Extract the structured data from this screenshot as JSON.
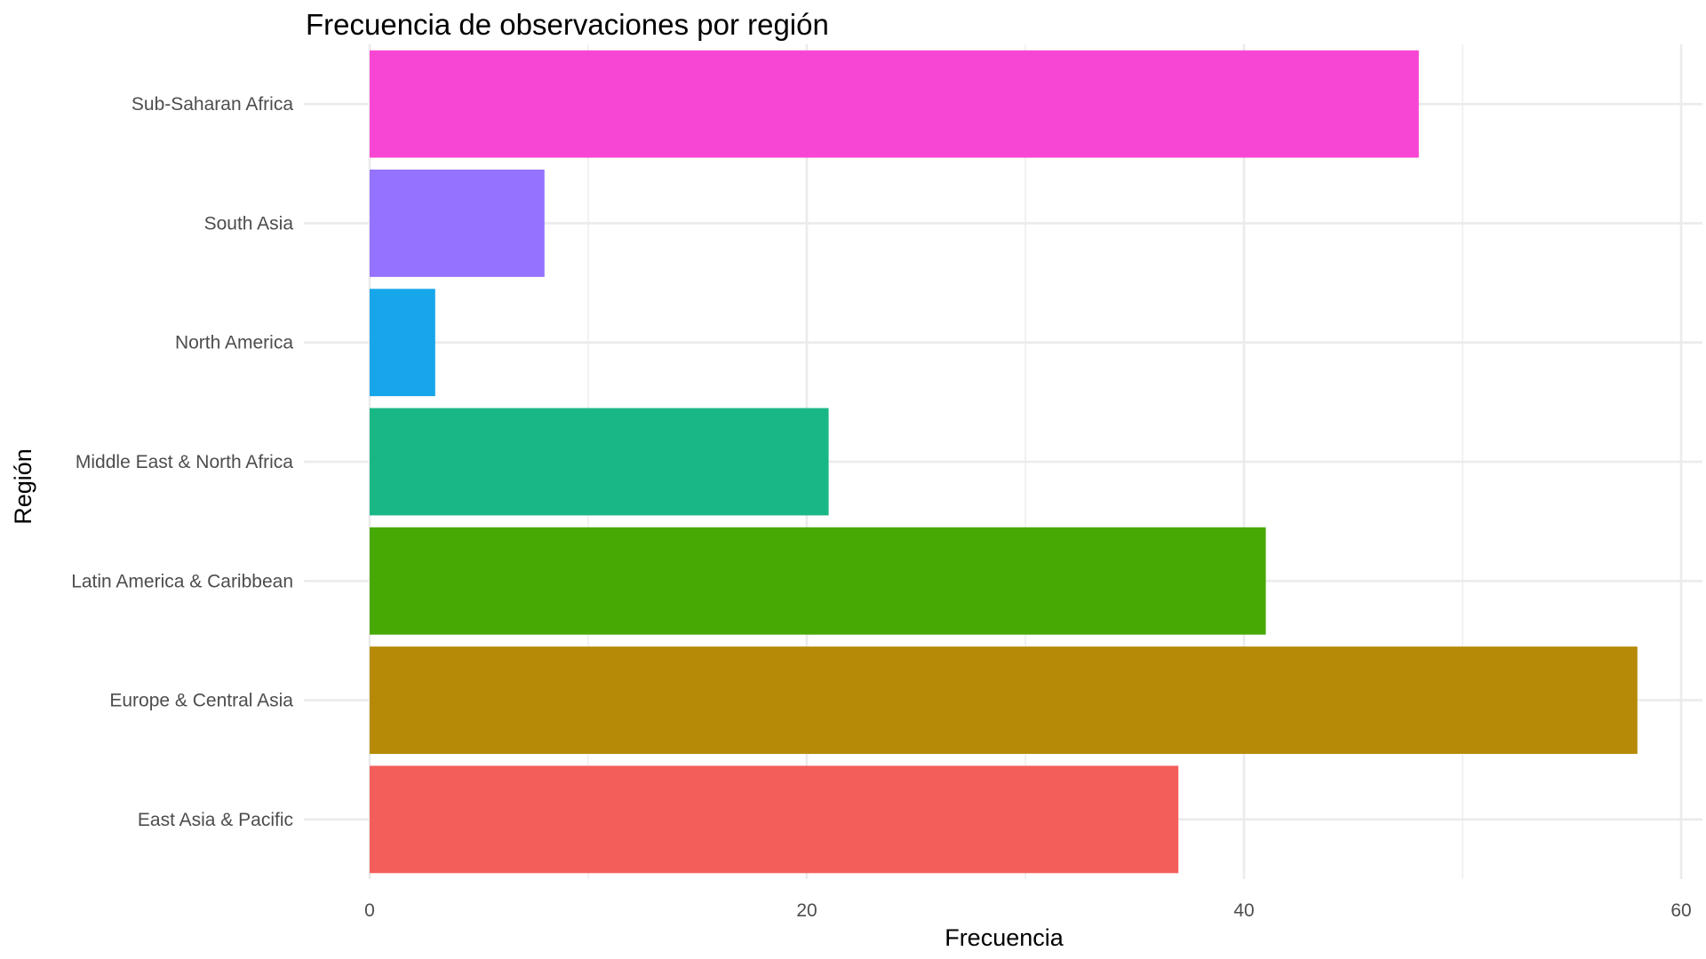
{
  "chart_data": {
    "type": "bar",
    "orientation": "horizontal",
    "title": "Frecuencia de observaciones por región",
    "xlabel": "Frecuencia",
    "ylabel": "Región",
    "categories": [
      "East Asia & Pacific",
      "Europe & Central Asia",
      "Latin America & Caribbean",
      "Middle East & North Africa",
      "North America",
      "South Asia",
      "Sub-Saharan Africa"
    ],
    "values": [
      37,
      58,
      41,
      21,
      3,
      8,
      48
    ],
    "colors": [
      "#F35E5A",
      "#B68A06",
      "#47A904",
      "#1AB786",
      "#17A6E9",
      "#9572FF",
      "#F846D4"
    ],
    "xlim": [
      0,
      60
    ],
    "x_ticks": [
      0,
      20,
      40,
      60
    ],
    "grid": true,
    "legend": "none"
  }
}
